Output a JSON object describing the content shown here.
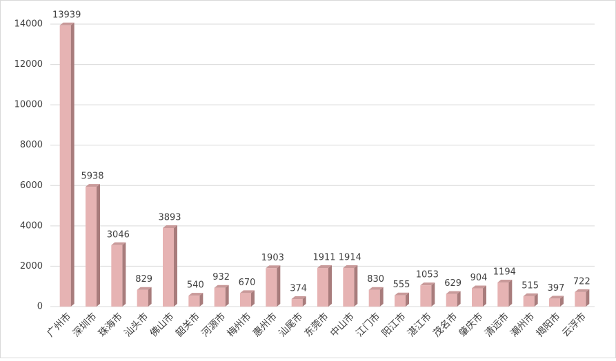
{
  "chart_data": {
    "type": "bar",
    "categories": [
      "广州市",
      "深圳市",
      "珠海市",
      "汕头市",
      "佛山市",
      "韶关市",
      "河源市",
      "梅州市",
      "惠州市",
      "汕尾市",
      "东莞市",
      "中山市",
      "江门市",
      "阳江市",
      "湛江市",
      "茂名市",
      "肇庆市",
      "清远市",
      "潮州市",
      "揭阳市",
      "云浮市"
    ],
    "values": [
      13939,
      5938,
      3046,
      829,
      3893,
      540,
      932,
      670,
      1903,
      374,
      1911,
      1914,
      830,
      555,
      1053,
      629,
      904,
      1194,
      515,
      397,
      722
    ],
    "color": "#e6b3b3",
    "ylim": [
      0,
      14000
    ],
    "yticks": [
      0,
      2000,
      4000,
      6000,
      8000,
      10000,
      12000,
      14000
    ],
    "grid": true
  }
}
